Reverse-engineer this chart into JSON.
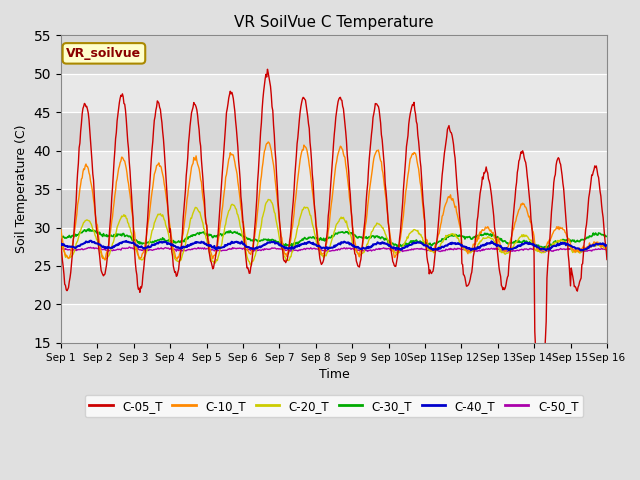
{
  "title": "VR SoilVue C Temperature",
  "xlabel": "Time",
  "ylabel": "Soil Temperature (C)",
  "ylim": [
    15,
    55
  ],
  "xlim": [
    0,
    15
  ],
  "yticks": [
    15,
    20,
    25,
    30,
    35,
    40,
    45,
    50,
    55
  ],
  "xtick_labels": [
    "Sep 1",
    "Sep 2",
    "Sep 3",
    "Sep 4",
    "Sep 5",
    "Sep 6",
    "Sep 7",
    "Sep 8",
    "Sep 9",
    "Sep 10",
    "Sep 11",
    "Sep 12",
    "Sep 13",
    "Sep 14",
    "Sep 15",
    "Sep 16"
  ],
  "background_color": "#e0e0e0",
  "plot_bg_color": "#e8e8e8",
  "legend_label": "VR_soilvue",
  "series_colors": {
    "C-05_T": "#cc0000",
    "C-10_T": "#ff8800",
    "C-20_T": "#cccc00",
    "C-30_T": "#00aa00",
    "C-40_T": "#0000cc",
    "C-50_T": "#aa00aa"
  },
  "series_labels": [
    "C-05_T",
    "C-10_T",
    "C-20_T",
    "C-30_T",
    "C-40_T",
    "C-50_T"
  ],
  "figsize": [
    6.4,
    4.8
  ],
  "dpi": 100
}
